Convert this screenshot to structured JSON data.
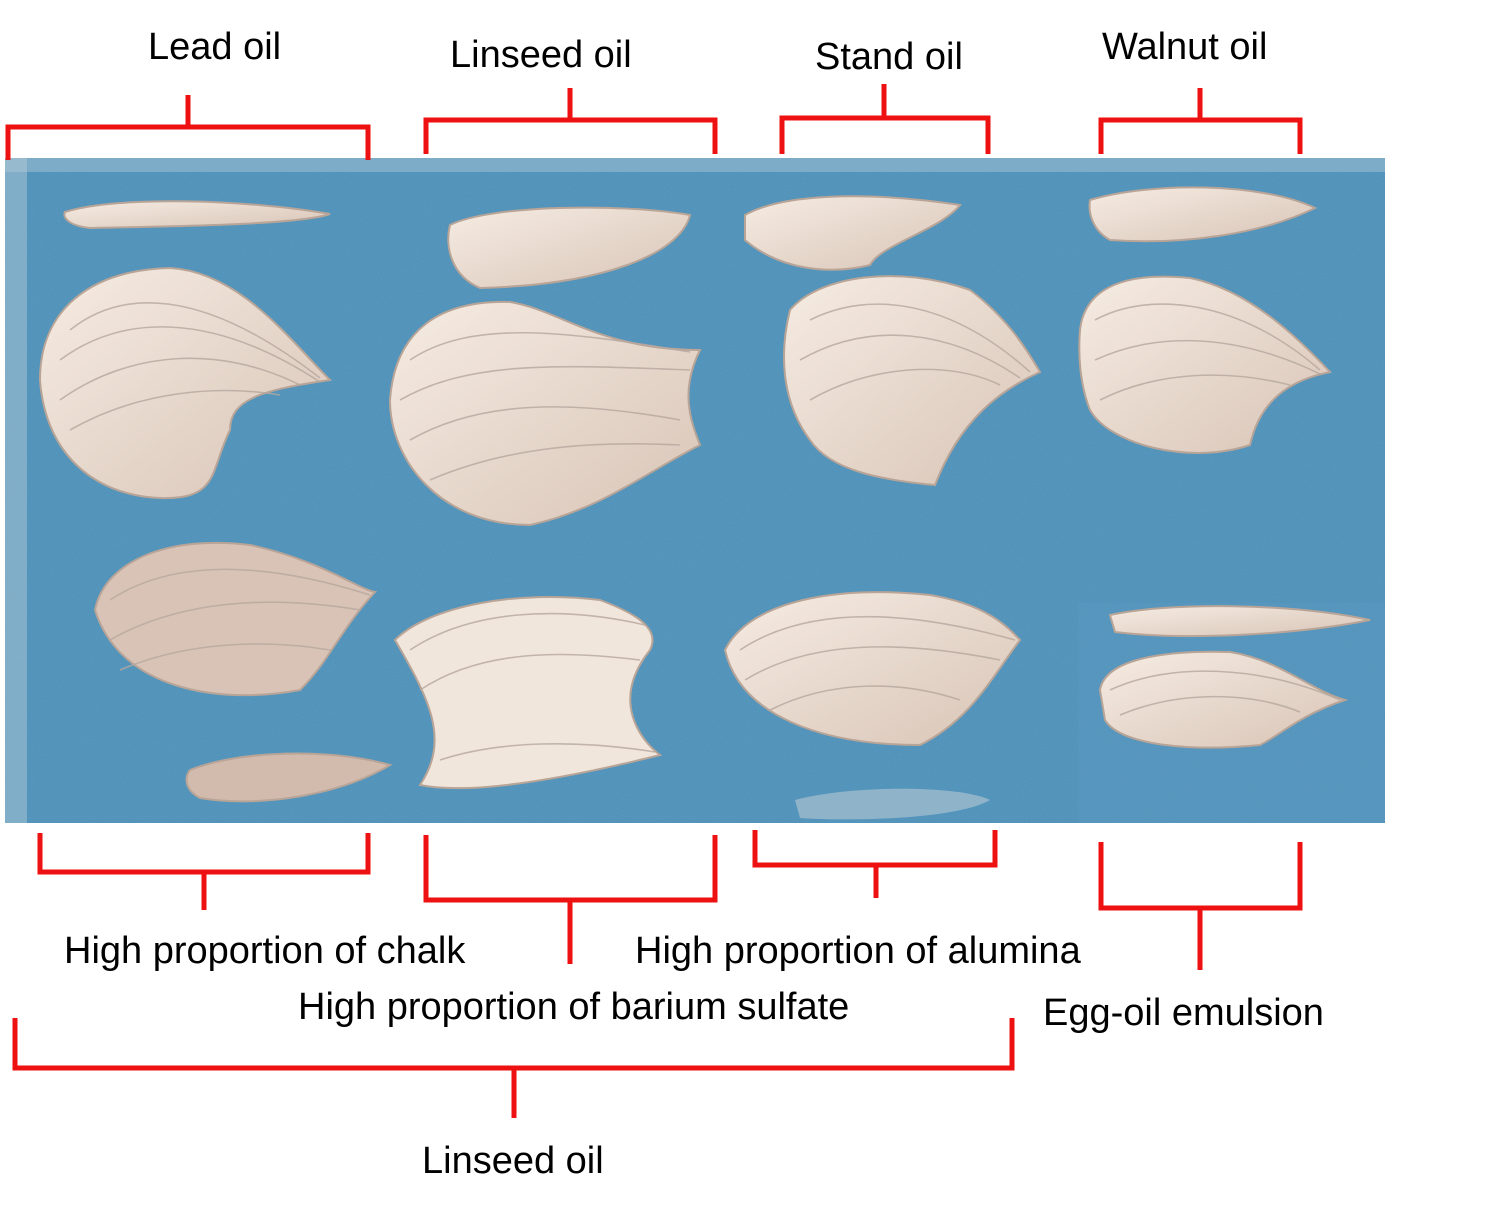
{
  "labels": {
    "top": [
      "Lead oil",
      "Linseed oil",
      "Stand oil",
      "Walnut oil"
    ],
    "bottom": {
      "chalk": "High proportion of chalk",
      "barium": "High proportion of barium sulfate",
      "alumina": "High proportion of alumina",
      "egg": "Egg-oil emulsion",
      "linseed": "Linseed oil"
    }
  },
  "colors": {
    "bracket": "#ee1111",
    "panel": "#4d8fb8",
    "panel_dark": "#3f7fa8",
    "paint": "#efe2d6",
    "paint_shadow": "#c9b4a6"
  }
}
